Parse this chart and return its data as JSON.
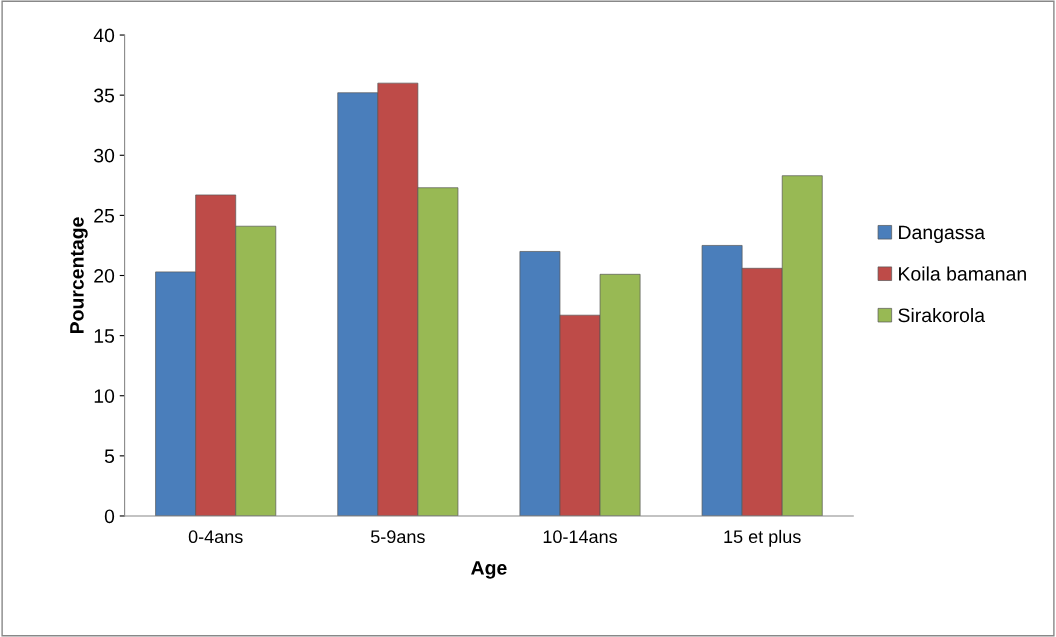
{
  "chart_data": {
    "type": "bar",
    "xlabel": "Age",
    "ylabel": "Pourcentage",
    "categories": [
      "0-4ans",
      "5-9ans",
      "10-14ans",
      "15 et plus"
    ],
    "series": [
      {
        "name": "Dangassa",
        "color": "#4a7ebb",
        "values": [
          20.3,
          35.2,
          22.0,
          22.5
        ]
      },
      {
        "name": "Koila bamanan",
        "color": "#be4b48",
        "values": [
          26.7,
          36.0,
          16.7,
          20.6
        ]
      },
      {
        "name": "Sirakorola",
        "color": "#98b954",
        "values": [
          24.1,
          27.3,
          20.1,
          28.3
        ]
      }
    ],
    "ylim": [
      0,
      40
    ],
    "yticks": [
      0,
      5,
      10,
      15,
      20,
      25,
      30,
      35,
      40
    ],
    "grid": false,
    "legend": "right"
  }
}
